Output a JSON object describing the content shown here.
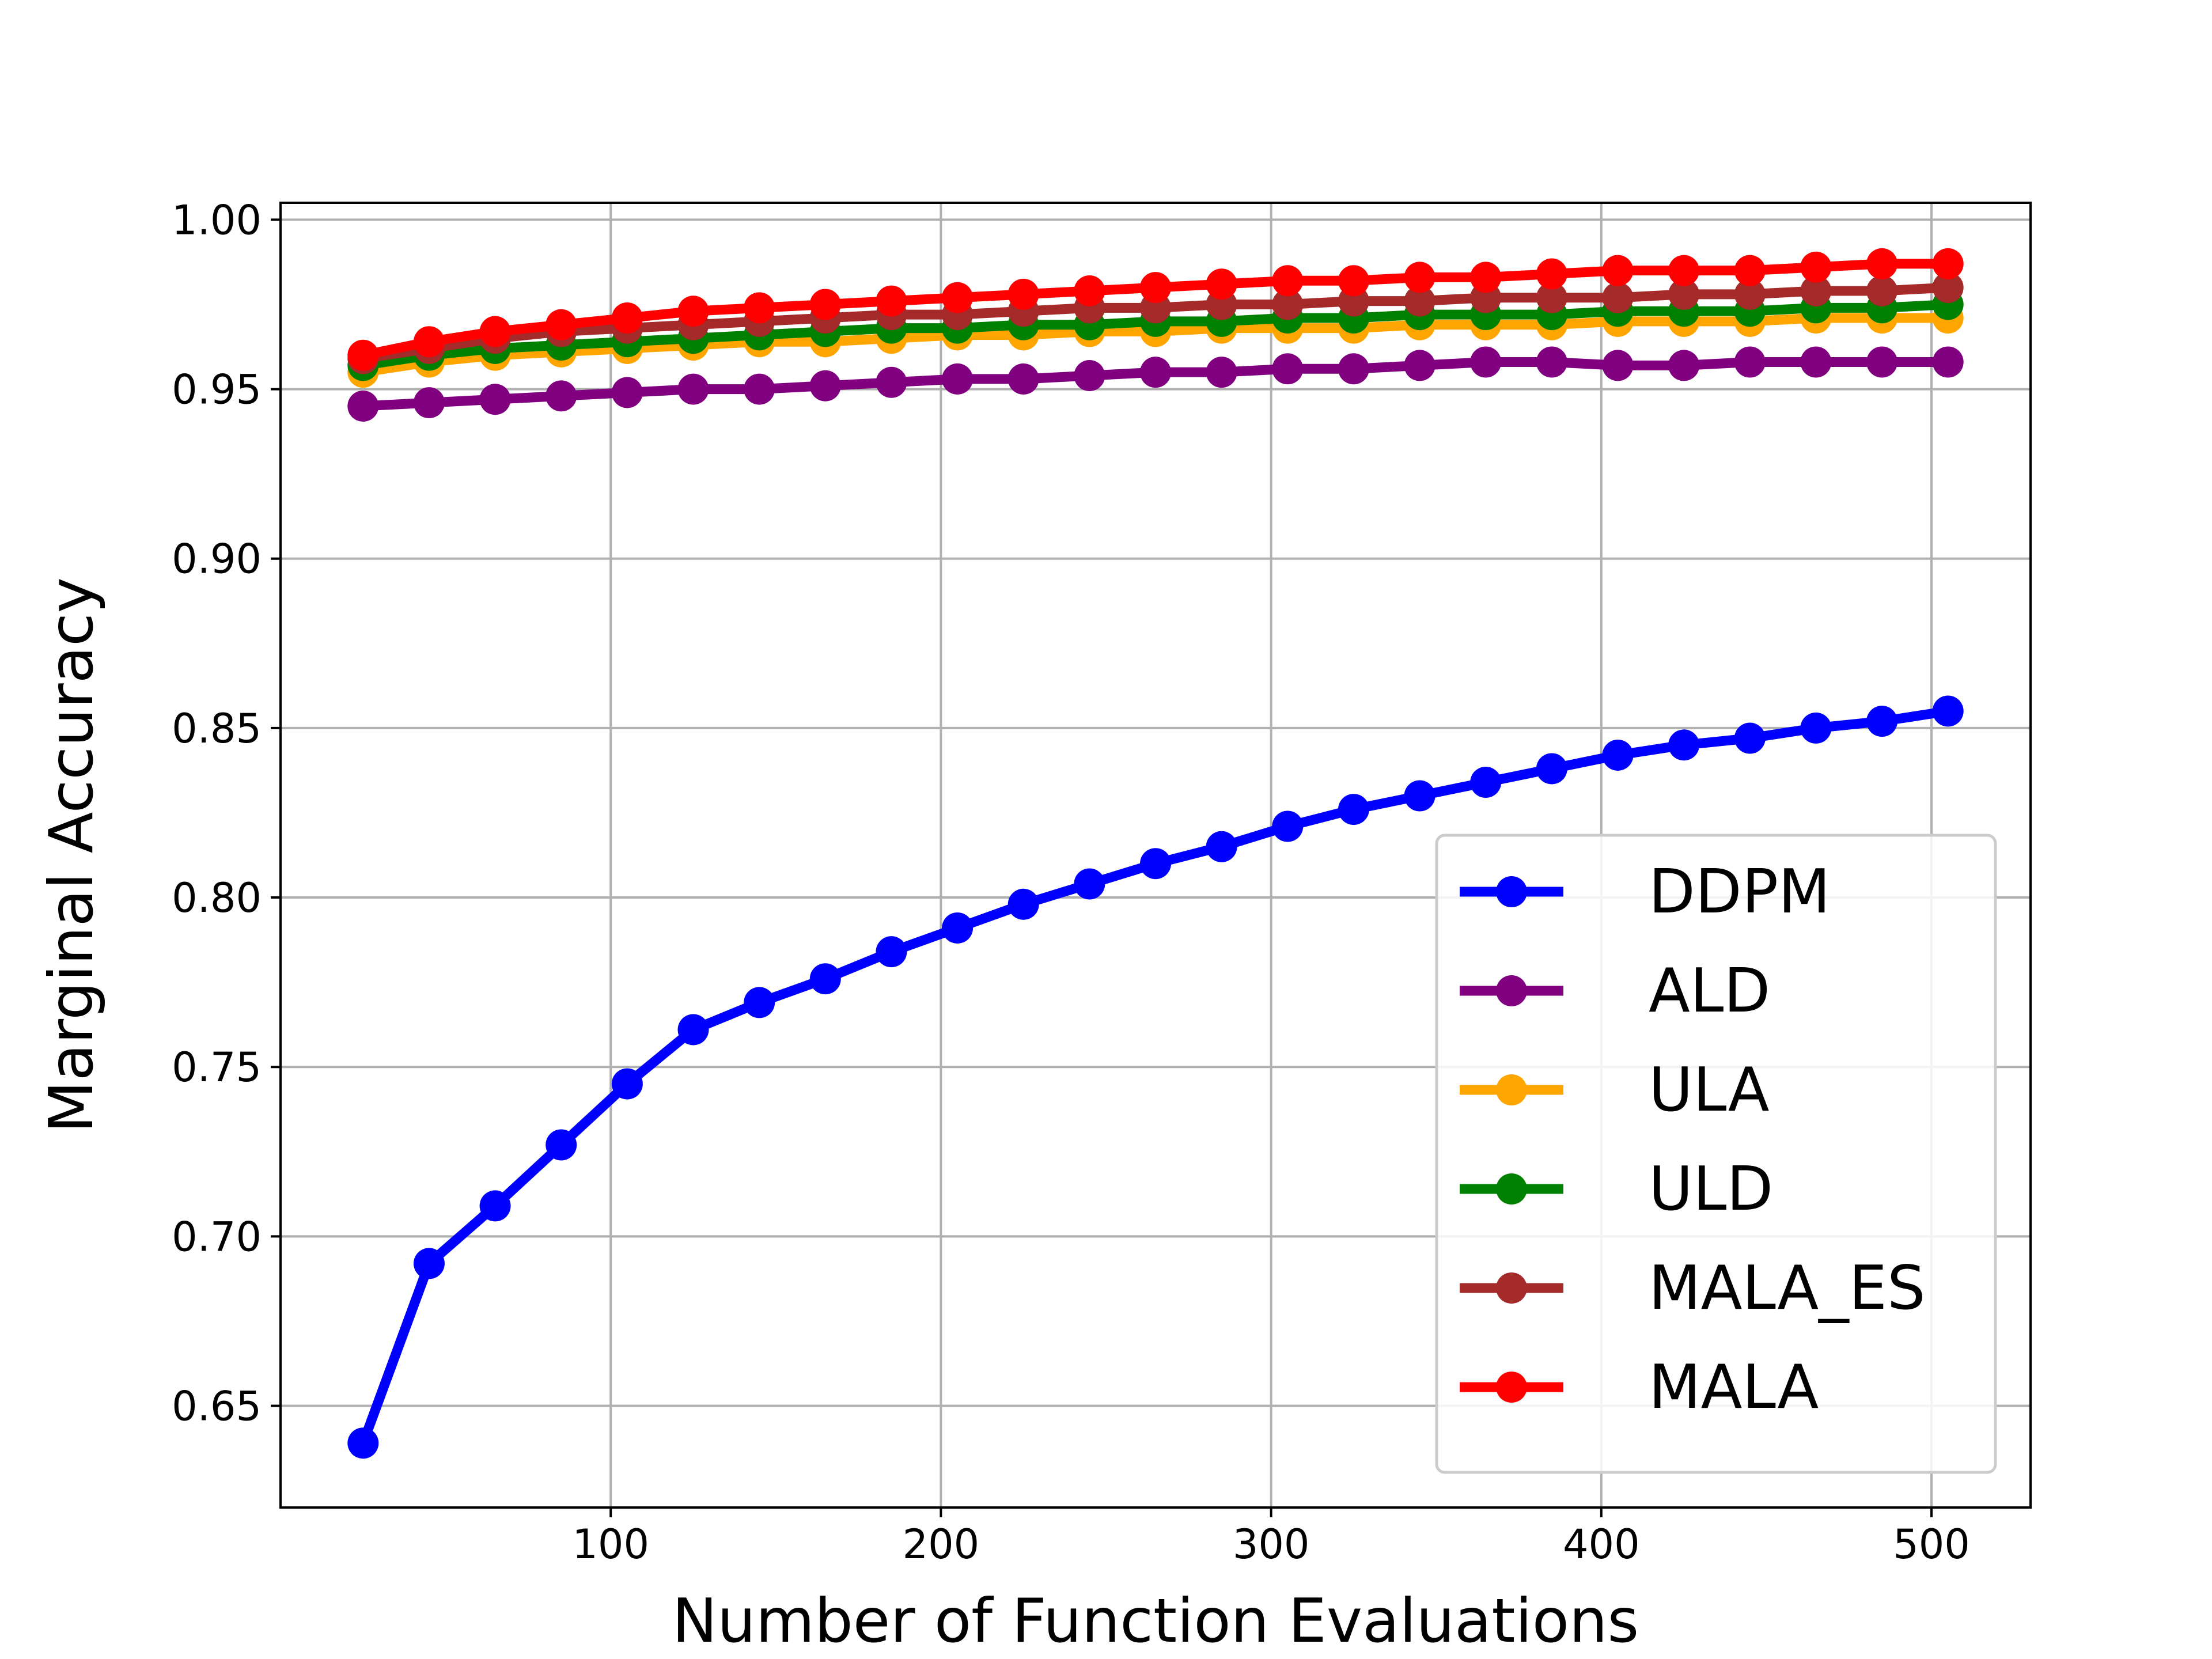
{
  "chart_data": {
    "type": "line",
    "title": "",
    "xlabel": "Number of Function Evaluations",
    "ylabel": "Marginal Accuracy",
    "xlim": [
      0,
      530
    ],
    "ylim": [
      0.62,
      1.005
    ],
    "xticks": [
      100,
      200,
      300,
      400,
      500
    ],
    "yticks": [
      0.65,
      0.7,
      0.75,
      0.8,
      0.85,
      0.9,
      0.95,
      1.0
    ],
    "xtick_labels": [
      "100",
      "200",
      "300",
      "400",
      "500"
    ],
    "ytick_labels": [
      "0.65",
      "0.70",
      "0.75",
      "0.80",
      "0.85",
      "0.90",
      "0.95",
      "1.00"
    ],
    "grid": true,
    "legend_position": "lower-right",
    "x": [
      25,
      45,
      65,
      85,
      105,
      125,
      145,
      165,
      185,
      205,
      225,
      245,
      265,
      285,
      305,
      325,
      345,
      365,
      385,
      405,
      425,
      445,
      465,
      485,
      505
    ],
    "series": [
      {
        "name": "DDPM",
        "color": "#0000ff",
        "values": [
          0.639,
          0.692,
          0.709,
          0.727,
          0.745,
          0.761,
          0.769,
          0.776,
          0.784,
          0.791,
          0.798,
          0.804,
          0.81,
          0.815,
          0.821,
          0.826,
          0.83,
          0.834,
          0.838,
          0.842,
          0.845,
          0.847,
          0.85,
          0.852,
          0.855
        ]
      },
      {
        "name": "ALD",
        "color": "#800080",
        "values": [
          0.945,
          0.946,
          0.947,
          0.948,
          0.949,
          0.95,
          0.95,
          0.951,
          0.952,
          0.953,
          0.953,
          0.954,
          0.955,
          0.955,
          0.956,
          0.956,
          0.957,
          0.958,
          0.958,
          0.957,
          0.957,
          0.958,
          0.958,
          0.958,
          0.958
        ]
      },
      {
        "name": "ULA",
        "color": "#ffa500",
        "values": [
          0.955,
          0.958,
          0.96,
          0.961,
          0.962,
          0.963,
          0.964,
          0.964,
          0.965,
          0.966,
          0.966,
          0.967,
          0.967,
          0.968,
          0.968,
          0.968,
          0.969,
          0.969,
          0.969,
          0.97,
          0.97,
          0.97,
          0.971,
          0.971,
          0.971
        ]
      },
      {
        "name": "ULD",
        "color": "#008000",
        "values": [
          0.957,
          0.96,
          0.962,
          0.963,
          0.964,
          0.965,
          0.966,
          0.967,
          0.968,
          0.968,
          0.969,
          0.969,
          0.97,
          0.97,
          0.971,
          0.971,
          0.972,
          0.972,
          0.972,
          0.973,
          0.973,
          0.973,
          0.974,
          0.974,
          0.975
        ]
      },
      {
        "name": "MALA_ES",
        "color": "#a52a2a",
        "values": [
          0.959,
          0.962,
          0.965,
          0.967,
          0.968,
          0.969,
          0.97,
          0.971,
          0.972,
          0.972,
          0.973,
          0.974,
          0.974,
          0.975,
          0.975,
          0.976,
          0.976,
          0.977,
          0.977,
          0.977,
          0.978,
          0.978,
          0.979,
          0.979,
          0.98
        ]
      },
      {
        "name": "MALA",
        "color": "#ff0000",
        "values": [
          0.96,
          0.964,
          0.967,
          0.969,
          0.971,
          0.973,
          0.974,
          0.975,
          0.976,
          0.977,
          0.978,
          0.979,
          0.98,
          0.981,
          0.982,
          0.982,
          0.983,
          0.983,
          0.984,
          0.985,
          0.985,
          0.985,
          0.986,
          0.987,
          0.987
        ]
      }
    ]
  }
}
